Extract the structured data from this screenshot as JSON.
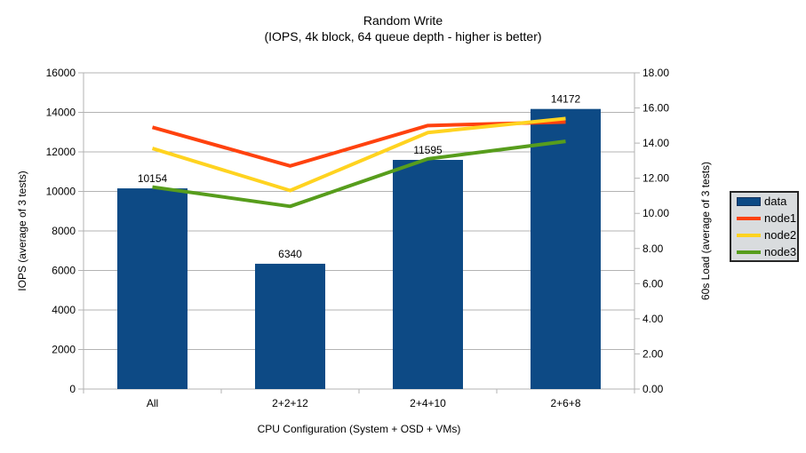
{
  "title": {
    "line1": "Random Write",
    "line2": "(IOPS, 4k block, 64 queue depth - higher is better)"
  },
  "axis_titles": {
    "left": "IOPS (average of 3 tests)",
    "right": "60s Load (average of 3 tests)",
    "x": "CPU Configuration (System + OSD + VMs)"
  },
  "colors": {
    "bar_blue": "#0d4a85",
    "line_red": "#ff420e",
    "line_yellow": "#ffd320",
    "line_green": "#579d1c",
    "grid": "#b3b3b3",
    "text": "#000000",
    "legend_background": "#d9dcde"
  },
  "chart_data": {
    "type": "bar",
    "title": "Random Write (IOPS, 4k block, 64 queue depth - higher is better)",
    "xlabel": "CPU Configuration (System + OSD + VMs)",
    "ylabel": "IOPS (average of 3 tests)",
    "ylabel_right": "60s Load (average of 3 tests)",
    "categories": [
      "All",
      "2+2+12",
      "2+4+10",
      "2+6+8"
    ],
    "left_axis": {
      "min": 0,
      "max": 16000,
      "step": 2000
    },
    "right_axis": {
      "min": 0,
      "max": 18,
      "step": 2,
      "decimals": 2
    },
    "grid": true,
    "legend_position": "right",
    "series": [
      {
        "name": "data",
        "type": "bar",
        "axis": "left",
        "color": "#0d4a85",
        "data_labels": true,
        "values": [
          10154,
          6340,
          11595,
          14172
        ]
      },
      {
        "name": "node1",
        "type": "line",
        "axis": "right",
        "color": "#ff420e",
        "values": [
          14.9,
          12.7,
          15.0,
          15.2
        ]
      },
      {
        "name": "node2",
        "type": "line",
        "axis": "right",
        "color": "#ffd320",
        "values": [
          13.7,
          11.3,
          14.6,
          15.4
        ]
      },
      {
        "name": "node3",
        "type": "line",
        "axis": "right",
        "color": "#579d1c",
        "values": [
          11.5,
          10.4,
          13.1,
          14.1
        ]
      }
    ]
  }
}
